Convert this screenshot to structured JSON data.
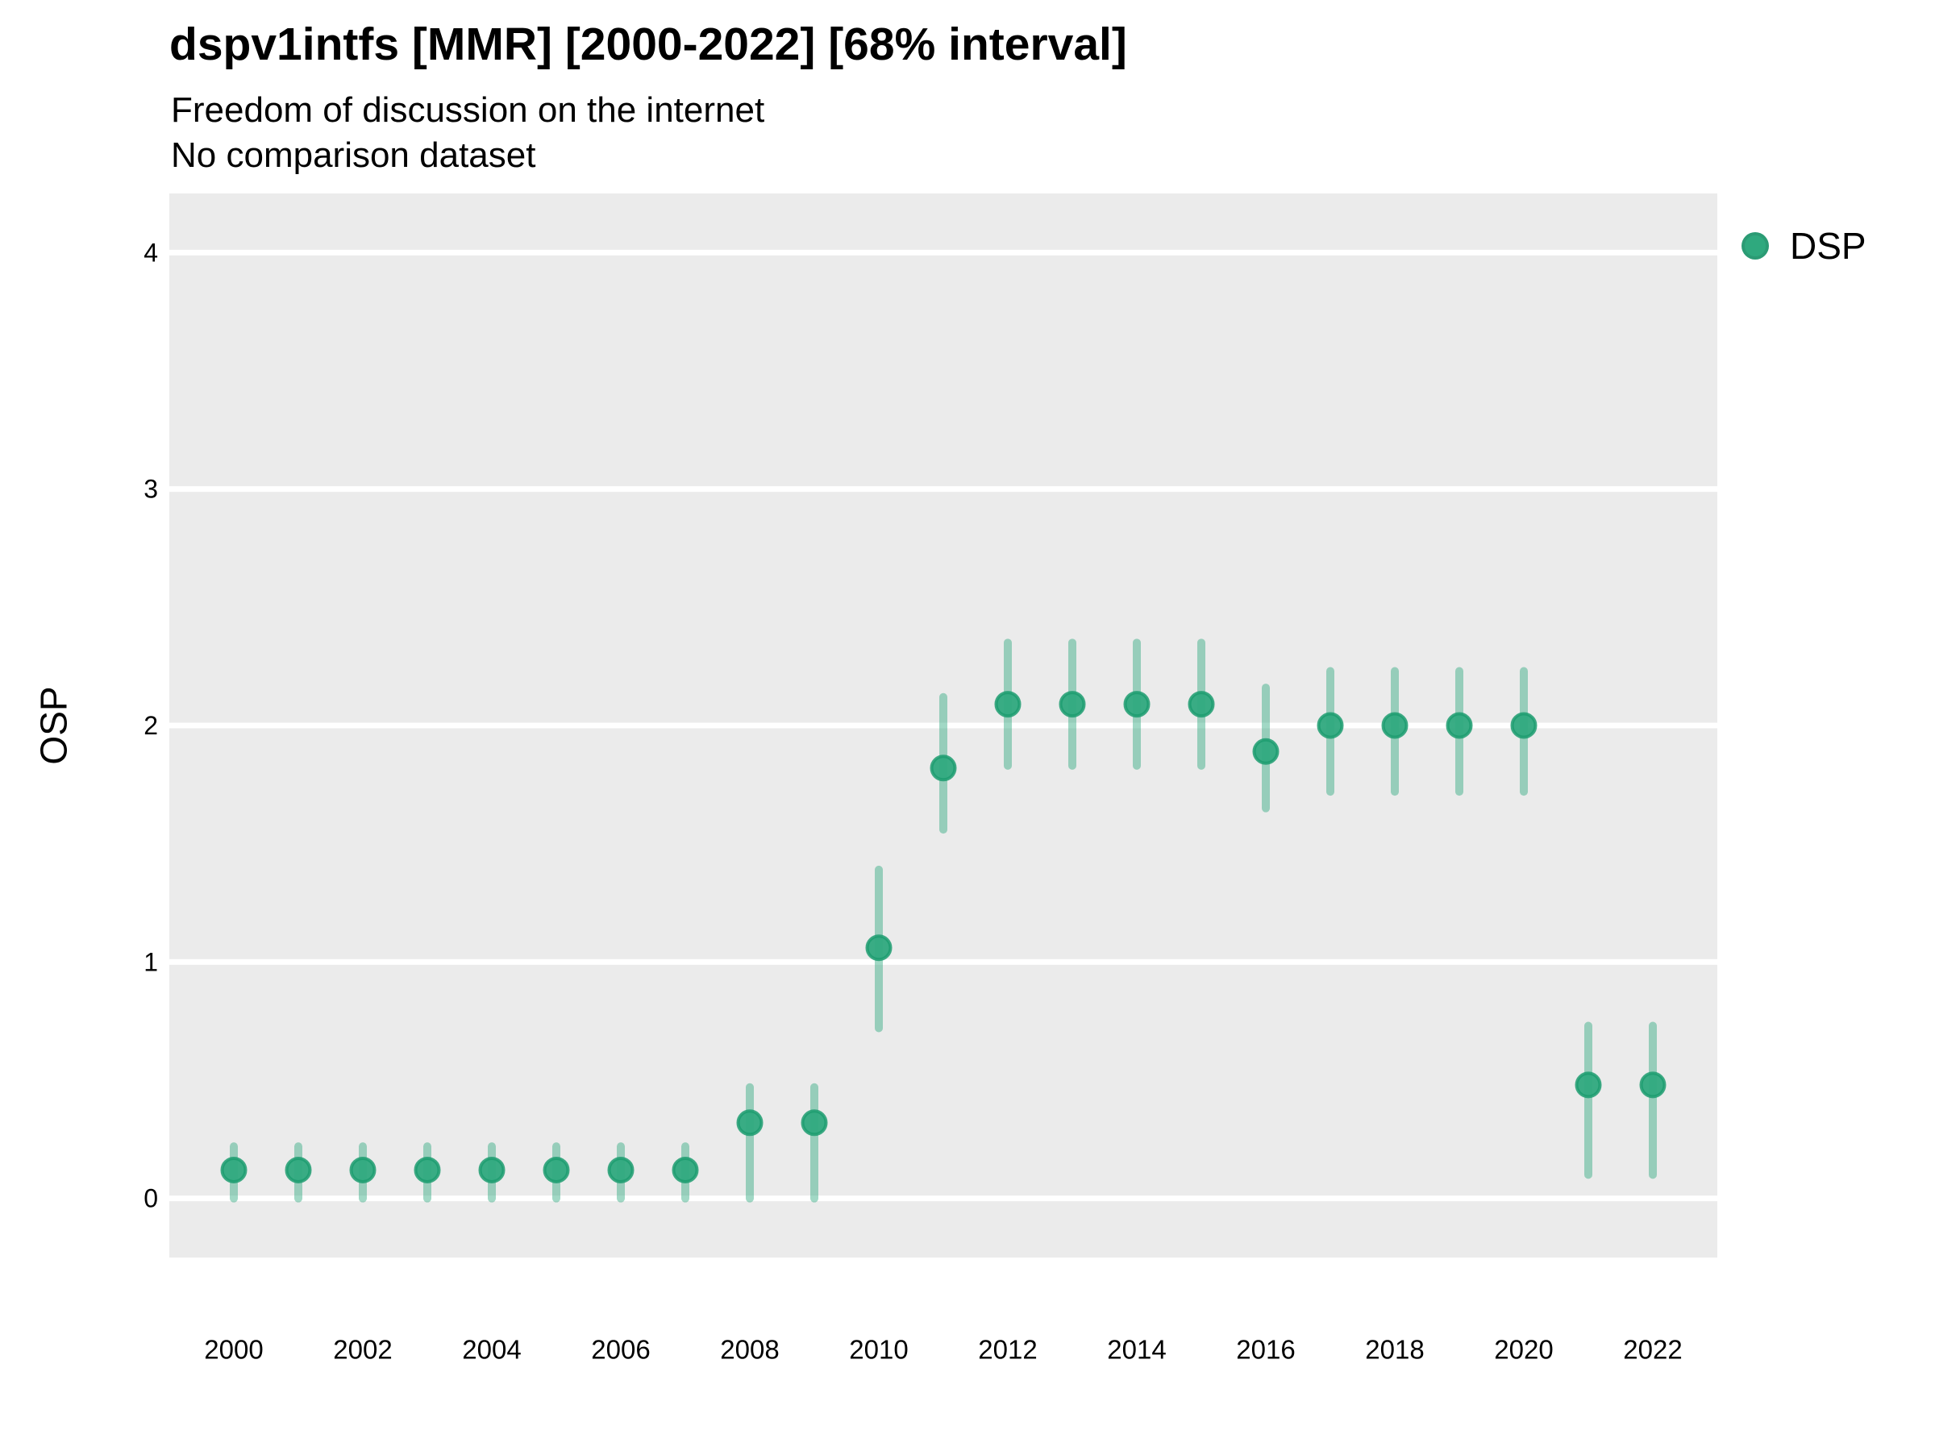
{
  "header": {
    "title": "dspv1intfs [MMR] [2000-2022] [68% interval]",
    "subtitle1": "Freedom of discussion on the internet",
    "subtitle2": "No comparison dataset"
  },
  "legend": {
    "label": "DSP"
  },
  "chart_data": {
    "type": "scatter",
    "title": "dspv1intfs [MMR] [2000-2022] [68% interval]",
    "subtitle": "Freedom of discussion on the internet",
    "note": "No comparison dataset",
    "xlabel": "",
    "ylabel": "OSP",
    "x": [
      2000,
      2001,
      2002,
      2003,
      2004,
      2005,
      2006,
      2007,
      2008,
      2009,
      2010,
      2011,
      2012,
      2013,
      2014,
      2015,
      2016,
      2017,
      2018,
      2019,
      2020,
      2021,
      2022
    ],
    "series": [
      {
        "name": "DSP",
        "values": [
          0.12,
          0.12,
          0.12,
          0.12,
          0.12,
          0.12,
          0.12,
          0.12,
          0.32,
          0.32,
          1.06,
          1.82,
          2.09,
          2.09,
          2.09,
          2.09,
          1.89,
          2.0,
          2.0,
          2.0,
          2.0,
          0.48,
          0.48
        ],
        "lower": [
          0.0,
          0.0,
          0.0,
          0.0,
          0.0,
          0.0,
          0.0,
          0.0,
          0.0,
          0.0,
          0.72,
          1.56,
          1.83,
          1.83,
          1.83,
          1.83,
          1.65,
          1.72,
          1.72,
          1.72,
          1.72,
          0.1,
          0.1
        ],
        "upper": [
          0.22,
          0.22,
          0.22,
          0.22,
          0.22,
          0.22,
          0.22,
          0.22,
          0.47,
          0.47,
          1.39,
          2.12,
          2.35,
          2.35,
          2.35,
          2.35,
          2.16,
          2.23,
          2.23,
          2.23,
          2.23,
          0.73,
          0.73
        ]
      }
    ],
    "interval_label": "68% interval",
    "xticks": [
      2000,
      2002,
      2004,
      2006,
      2008,
      2010,
      2012,
      2014,
      2016,
      2018,
      2020,
      2022
    ],
    "yticks": [
      0,
      1,
      2,
      3,
      4
    ],
    "xlim": [
      1999,
      2023
    ],
    "ylim": [
      -0.25,
      4.25
    ],
    "grid": "horizontal-major-only",
    "legend_position": "right",
    "colors": {
      "point": "#2fa97e",
      "point_stroke": "#1d9c70",
      "interval": "#2fa97e",
      "interval_opacity": 0.45,
      "panel_bg": "#ebebeb",
      "gridline": "#ffffff",
      "text": "#000000"
    }
  }
}
